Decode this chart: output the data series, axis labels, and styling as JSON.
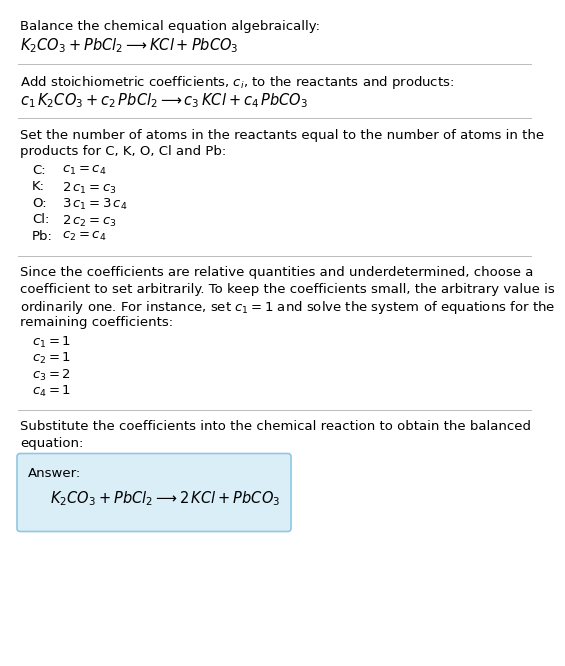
{
  "bg_color": "#ffffff",
  "text_color": "#000000",
  "section1_title": "Balance the chemical equation algebraically:",
  "section1_eq": "$K_2CO_3 + PbCl_2 \\longrightarrow  KCl + PbCO_3$",
  "section2_title": "Add stoichiometric coefficients, $c_i$, to the reactants and products:",
  "section2_eq": "$c_1\\, K_2CO_3 + c_2\\, PbCl_2 \\longrightarrow c_3\\, KCl + c_4\\, PbCO_3$",
  "section3_title_line1": "Set the number of atoms in the reactants equal to the number of atoms in the",
  "section3_title_line2": "products for C, K, O, Cl and Pb:",
  "section3_equations": [
    [
      "C:",
      "$c_1 = c_4$"
    ],
    [
      "K:",
      "$2\\,c_1 = c_3$"
    ],
    [
      "O:",
      "$3\\,c_1 = 3\\,c_4$"
    ],
    [
      "Cl:",
      "$2\\,c_2 = c_3$"
    ],
    [
      "Pb:",
      "$c_2 = c_4$"
    ]
  ],
  "section4_line1": "Since the coefficients are relative quantities and underdetermined, choose a",
  "section4_line2": "coefficient to set arbitrarily. To keep the coefficients small, the arbitrary value is",
  "section4_line3": "ordinarily one. For instance, set $c_1 = 1$ and solve the system of equations for the",
  "section4_line4": "remaining coefficients:",
  "section4_solutions": [
    "$c_1 = 1$",
    "$c_2 = 1$",
    "$c_3 = 2$",
    "$c_4 = 1$"
  ],
  "section5_line1": "Substitute the coefficients into the chemical reaction to obtain the balanced",
  "section5_line2": "equation:",
  "answer_label": "Answer:",
  "answer_eq": "$K_2CO_3 + PbCl_2 \\longrightarrow  2\\,KCl + PbCO_3$",
  "answer_box_color": "#daeef8",
  "answer_box_edge": "#90c8e0",
  "separator_color": "#bbbbbb",
  "font_size": 9.5,
  "eq_font_size": 10.5
}
